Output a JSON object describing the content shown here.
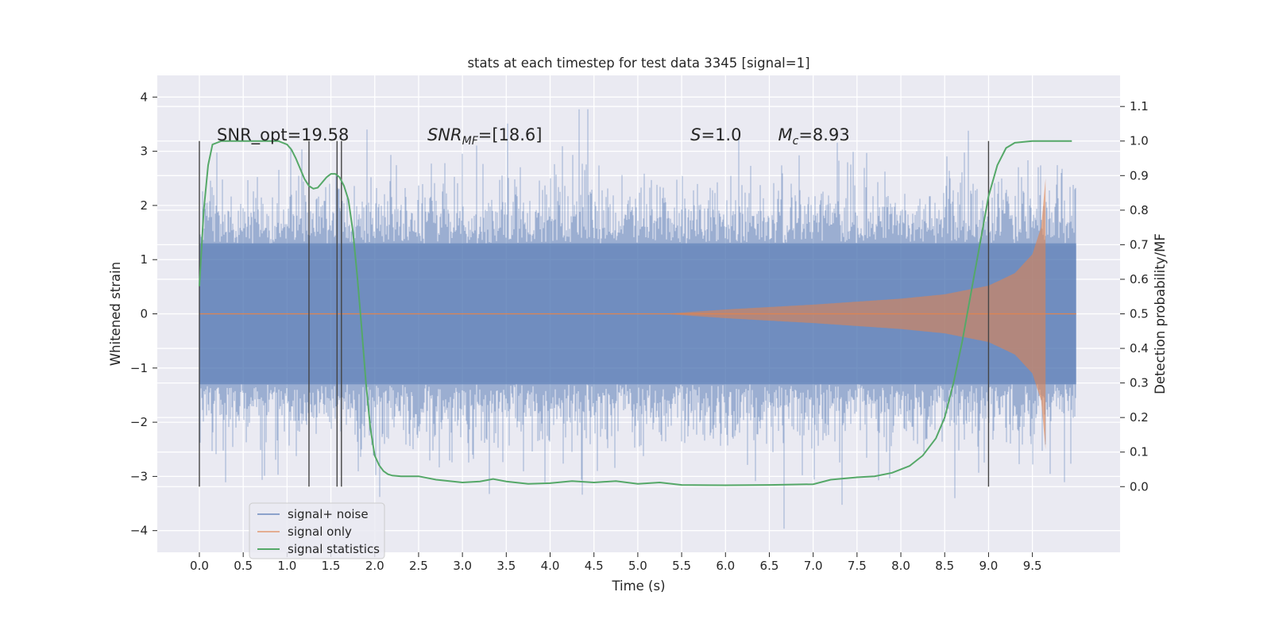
{
  "chart_data": {
    "type": "line",
    "title": "stats at each timestep for test data 3345 [signal=1]",
    "xlabel": "Time (s)",
    "ylabel": "Whitened strain",
    "y2label": "Detection probability/MF",
    "xlim": [
      -0.48,
      10.5
    ],
    "ylim": [
      -4.4,
      4.4
    ],
    "y2lim": [
      -0.19,
      1.19
    ],
    "xticks": [
      0.0,
      0.5,
      1.0,
      1.5,
      2.0,
      2.5,
      3.0,
      3.5,
      4.0,
      4.5,
      5.0,
      5.5,
      6.0,
      6.5,
      7.0,
      7.5,
      8.0,
      8.5,
      9.0,
      9.5
    ],
    "xtick_labels": [
      "0.0",
      "0.5",
      "1.0",
      "1.5",
      "2.0",
      "2.5",
      "3.0",
      "3.5",
      "4.0",
      "4.5",
      "5.0",
      "5.5",
      "6.0",
      "6.5",
      "7.0",
      "7.5",
      "8.0",
      "8.5",
      "9.0",
      "9.5"
    ],
    "yticks": [
      4,
      3,
      2,
      1,
      0,
      -1,
      -2,
      -3,
      -4
    ],
    "ytick_labels": [
      "4",
      "3",
      "2",
      "1",
      "0",
      "−1",
      "−2",
      "−3",
      "−4"
    ],
    "y2ticks": [
      1.1,
      1.0,
      0.9,
      0.8,
      0.7,
      0.6,
      0.5,
      0.4,
      0.3,
      0.2,
      0.1,
      0.0
    ],
    "y2tick_labels": [
      "1.1",
      "1.0",
      "0.9",
      "0.8",
      "0.7",
      "0.6",
      "0.5",
      "0.4",
      "0.3",
      "0.2",
      "0.1",
      "0.0"
    ],
    "grid": true,
    "legend_position": "lower-left",
    "series": [
      {
        "name": "signal+ noise",
        "color": "#4c72b0",
        "kind": "noise",
        "x_range": [
          0.0,
          10.0
        ],
        "envelope": [
          1.3,
          -1.3
        ],
        "y_range": [
          -4.0,
          4.0
        ]
      },
      {
        "name": "signal only",
        "color": "#dd8452",
        "kind": "chirp",
        "x_range": [
          5.3,
          9.65
        ],
        "amplitude_points": [
          [
            5.3,
            0.0
          ],
          [
            6.0,
            0.08
          ],
          [
            7.0,
            0.17
          ],
          [
            8.0,
            0.28
          ],
          [
            8.5,
            0.36
          ],
          [
            9.0,
            0.52
          ],
          [
            9.3,
            0.75
          ],
          [
            9.5,
            1.1
          ],
          [
            9.6,
            1.6
          ],
          [
            9.65,
            2.5
          ]
        ]
      },
      {
        "name": "signal statistics",
        "color": "#55a868",
        "kind": "line",
        "axis": "right",
        "x": [
          0.0,
          0.05,
          0.1,
          0.15,
          0.25,
          0.5,
          0.75,
          0.9,
          1.0,
          1.05,
          1.1,
          1.15,
          1.2,
          1.25,
          1.3,
          1.35,
          1.4,
          1.45,
          1.5,
          1.55,
          1.6,
          1.65,
          1.7,
          1.75,
          1.8,
          1.85,
          1.9,
          1.95,
          2.0,
          2.05,
          2.1,
          2.15,
          2.2,
          2.3,
          2.5,
          2.7,
          3.0,
          3.2,
          3.35,
          3.5,
          3.75,
          4.0,
          4.25,
          4.5,
          4.75,
          5.0,
          5.25,
          5.5,
          6.0,
          6.5,
          7.0,
          7.2,
          7.5,
          7.7,
          7.9,
          8.1,
          8.25,
          8.4,
          8.5,
          8.6,
          8.7,
          8.8,
          8.9,
          9.0,
          9.1,
          9.2,
          9.3,
          9.5,
          9.7,
          9.95
        ],
        "y": [
          0.58,
          0.8,
          0.93,
          0.99,
          1.0,
          1.0,
          1.0,
          1.0,
          0.99,
          0.975,
          0.95,
          0.92,
          0.89,
          0.87,
          0.862,
          0.865,
          0.88,
          0.895,
          0.905,
          0.905,
          0.895,
          0.87,
          0.83,
          0.74,
          0.61,
          0.46,
          0.3,
          0.17,
          0.09,
          0.062,
          0.045,
          0.036,
          0.032,
          0.03,
          0.03,
          0.02,
          0.012,
          0.015,
          0.022,
          0.015,
          0.008,
          0.01,
          0.016,
          0.012,
          0.016,
          0.008,
          0.012,
          0.005,
          0.004,
          0.005,
          0.007,
          0.02,
          0.027,
          0.03,
          0.04,
          0.06,
          0.09,
          0.14,
          0.2,
          0.3,
          0.42,
          0.56,
          0.7,
          0.84,
          0.93,
          0.98,
          0.995,
          1.0,
          1.0,
          1.0
        ]
      }
    ],
    "vlines": [
      0.0,
      1.25,
      1.57,
      1.62,
      9.0
    ],
    "vline_y2_range": [
      0.0,
      1.0
    ],
    "annotations": [
      {
        "text": "SNR_opt=19.58",
        "x": 0.2,
        "y": 3.2
      },
      {
        "text_html": "<tspan font-style='italic'>SNR</tspan><tspan font-style='italic' font-size='14' dy='5'>MF</tspan><tspan dy='-5'>=[18.6]</tspan>",
        "text": "SNRMF=[18.6]",
        "x": 2.6,
        "y": 3.2
      },
      {
        "text_html": "<tspan font-style='italic'>S</tspan><tspan>=1.0</tspan>",
        "text": "S=1.0",
        "x": 5.6,
        "y": 3.2
      },
      {
        "text_html": "<tspan font-style='italic'>M</tspan><tspan font-style='italic' font-size='14' dy='5'>c</tspan><tspan dy='-5'>=8.93</tspan>",
        "text": "Mc=8.93",
        "x": 6.6,
        "y": 3.2
      }
    ],
    "legend": [
      "signal+ noise",
      "signal only",
      "signal statistics"
    ]
  }
}
